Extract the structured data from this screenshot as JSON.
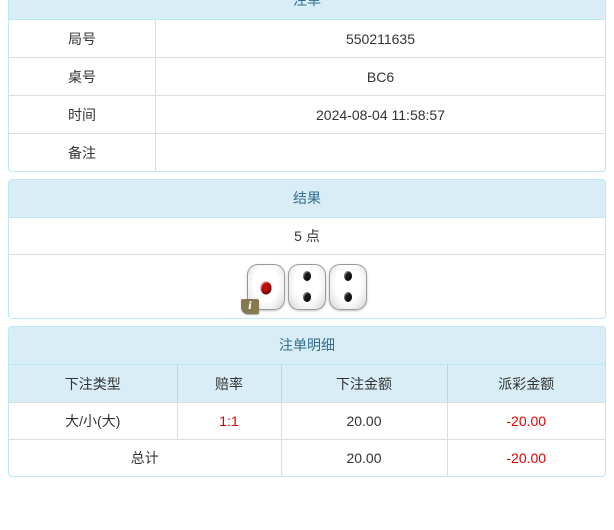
{
  "panel_order": {
    "title": "注单",
    "rows": [
      {
        "label": "局号",
        "value": "550211635"
      },
      {
        "label": "桌号",
        "value": "BC6"
      },
      {
        "label": "时间",
        "value": "2024-08-04 11:58:57"
      },
      {
        "label": "备注",
        "value": ""
      }
    ]
  },
  "panel_result": {
    "title": "结果",
    "points": "5 点",
    "dice": [
      {
        "value": 1,
        "pip_color": "#bb0a0a",
        "badge": "i"
      },
      {
        "value": 2,
        "pip_color": "#1a1a1a"
      },
      {
        "value": 2,
        "pip_color": "#1a1a1a"
      }
    ]
  },
  "panel_details": {
    "title": "注单明细",
    "columns": [
      "下注类型",
      "赔率",
      "下注金额",
      "派彩金额"
    ],
    "rows": [
      {
        "bet_type": "大/小(大)",
        "odds": "1:1",
        "bet_amount": "20.00",
        "payout": "-20.00"
      }
    ],
    "total_row": {
      "label": "总计",
      "bet_amount": "20.00",
      "payout": "-20.00"
    }
  },
  "colors": {
    "section_header_bg": "#d9edf7",
    "section_header_text": "#31708f",
    "panel_border": "#bce8f1",
    "row_border": "#dddddd",
    "text": "#333333",
    "negative": "#e60000",
    "odds": "#e60000"
  }
}
